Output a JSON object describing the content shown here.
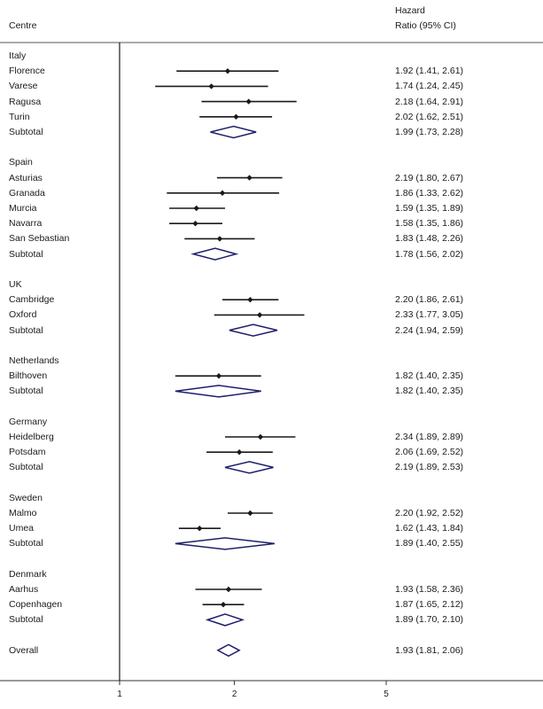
{
  "header": {
    "centre_label": "Centre",
    "hr_label_line1": "Hazard",
    "hr_label_line2": "Ratio (95% CI)"
  },
  "chart_data": {
    "type": "forest",
    "title": "",
    "xlabel": "",
    "x_scale": "log",
    "x_ticks": [
      1,
      2,
      5
    ],
    "x_tick_labels": [
      "1",
      "2",
      "5"
    ],
    "xlim": [
      1,
      5
    ],
    "reference_line": 1,
    "colors": {
      "point": "#1a1a1a",
      "diamond": "#1f1f6b",
      "line": "#1a1a1a"
    },
    "groups": [
      {
        "name": "Italy",
        "rows": [
          {
            "label": "Florence",
            "hr": 1.92,
            "lo": 1.41,
            "hi": 2.61,
            "text": "1.92 (1.41, 2.61)"
          },
          {
            "label": "Varese",
            "hr": 1.74,
            "lo": 1.24,
            "hi": 2.45,
            "text": "1.74 (1.24, 2.45)"
          },
          {
            "label": "Ragusa",
            "hr": 2.18,
            "lo": 1.64,
            "hi": 2.91,
            "text": "2.18 (1.64, 2.91)"
          },
          {
            "label": "Turin",
            "hr": 2.02,
            "lo": 1.62,
            "hi": 2.51,
            "text": "2.02 (1.62, 2.51)"
          }
        ],
        "subtotal": {
          "label": "Subtotal",
          "hr": 1.99,
          "lo": 1.73,
          "hi": 2.28,
          "text": "1.99 (1.73, 2.28)"
        }
      },
      {
        "name": "Spain",
        "rows": [
          {
            "label": "Asturias",
            "hr": 2.19,
            "lo": 1.8,
            "hi": 2.67,
            "text": "2.19 (1.80, 2.67)"
          },
          {
            "label": "Granada",
            "hr": 1.86,
            "lo": 1.33,
            "hi": 2.62,
            "text": "1.86 (1.33, 2.62)"
          },
          {
            "label": "Murcia",
            "hr": 1.59,
            "lo": 1.35,
            "hi": 1.89,
            "text": "1.59 (1.35, 1.89)"
          },
          {
            "label": "Navarra",
            "hr": 1.58,
            "lo": 1.35,
            "hi": 1.86,
            "text": "1.58 (1.35, 1.86)"
          },
          {
            "label": "San Sebastian",
            "hr": 1.83,
            "lo": 1.48,
            "hi": 2.26,
            "text": "1.83 (1.48, 2.26)"
          }
        ],
        "subtotal": {
          "label": "Subtotal",
          "hr": 1.78,
          "lo": 1.56,
          "hi": 2.02,
          "text": "1.78 (1.56, 2.02)"
        }
      },
      {
        "name": "UK",
        "rows": [
          {
            "label": "Cambridge",
            "hr": 2.2,
            "lo": 1.86,
            "hi": 2.61,
            "text": "2.20 (1.86, 2.61)"
          },
          {
            "label": "Oxford",
            "hr": 2.33,
            "lo": 1.77,
            "hi": 3.05,
            "text": "2.33 (1.77, 3.05)"
          }
        ],
        "subtotal": {
          "label": "Subtotal",
          "hr": 2.24,
          "lo": 1.94,
          "hi": 2.59,
          "text": "2.24 (1.94, 2.59)"
        }
      },
      {
        "name": "Netherlands",
        "rows": [
          {
            "label": "Bilthoven",
            "hr": 1.82,
            "lo": 1.4,
            "hi": 2.35,
            "text": "1.82 (1.40, 2.35)"
          }
        ],
        "subtotal": {
          "label": "Subtotal",
          "hr": 1.82,
          "lo": 1.4,
          "hi": 2.35,
          "text": "1.82 (1.40, 2.35)"
        }
      },
      {
        "name": "Germany",
        "rows": [
          {
            "label": "Heidelberg",
            "hr": 2.34,
            "lo": 1.89,
            "hi": 2.89,
            "text": "2.34 (1.89, 2.89)"
          },
          {
            "label": "Potsdam",
            "hr": 2.06,
            "lo": 1.69,
            "hi": 2.52,
            "text": "2.06 (1.69, 2.52)"
          }
        ],
        "subtotal": {
          "label": "Subtotal",
          "hr": 2.19,
          "lo": 1.89,
          "hi": 2.53,
          "text": "2.19 (1.89, 2.53)"
        }
      },
      {
        "name": "Sweden",
        "rows": [
          {
            "label": "Malmo",
            "hr": 2.2,
            "lo": 1.92,
            "hi": 2.52,
            "text": "2.20 (1.92, 2.52)"
          },
          {
            "label": "Umea",
            "hr": 1.62,
            "lo": 1.43,
            "hi": 1.84,
            "text": "1.62 (1.43, 1.84)"
          }
        ],
        "subtotal": {
          "label": "Subtotal",
          "hr": 1.89,
          "lo": 1.4,
          "hi": 2.55,
          "text": "1.89 (1.40, 2.55)"
        }
      },
      {
        "name": "Denmark",
        "rows": [
          {
            "label": "Aarhus",
            "hr": 1.93,
            "lo": 1.58,
            "hi": 2.36,
            "text": "1.93 (1.58, 2.36)"
          },
          {
            "label": "Copenhagen",
            "hr": 1.87,
            "lo": 1.65,
            "hi": 2.12,
            "text": "1.87 (1.65, 2.12)"
          }
        ],
        "subtotal": {
          "label": "Subtotal",
          "hr": 1.89,
          "lo": 1.7,
          "hi": 2.1,
          "text": "1.89 (1.70, 2.10)"
        }
      }
    ],
    "overall": {
      "label": "Overall",
      "hr": 1.93,
      "lo": 1.81,
      "hi": 2.06,
      "text": "1.93 (1.81, 2.06)"
    }
  }
}
